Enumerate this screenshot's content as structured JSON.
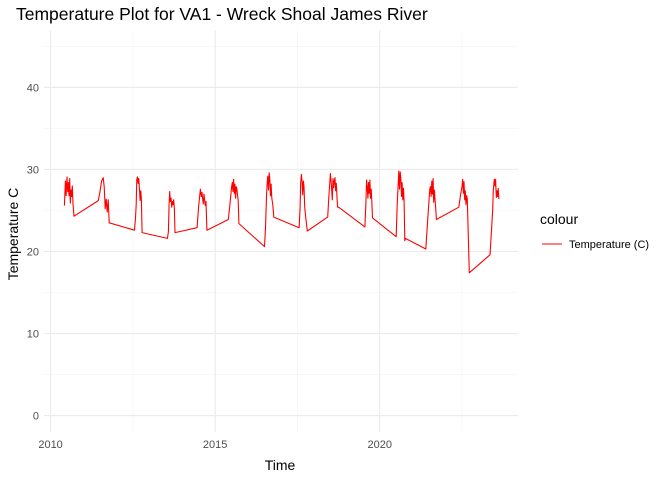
{
  "chart_data": {
    "type": "line",
    "title": "Temperature Plot for VA1 - Wreck Shoal James River",
    "xlabel": "Time",
    "ylabel": "Temperature C",
    "x_ticks": [
      2010,
      2015,
      2020
    ],
    "y_ticks": [
      0,
      10,
      20,
      30,
      40
    ],
    "xlim": [
      2009.8,
      2024.2
    ],
    "ylim": [
      -2,
      47
    ],
    "grid": true,
    "legend": {
      "title": "colour",
      "position": "right",
      "entries": [
        "Temperature (C)"
      ]
    },
    "series": [
      {
        "name": "Temperature (C)",
        "color": "#ff0000",
        "x": [
          2010.42,
          2010.45,
          2010.47,
          2010.5,
          2010.52,
          2010.54,
          2010.56,
          2010.58,
          2010.6,
          2010.62,
          2010.64,
          2010.66,
          2010.68,
          2010.71,
          2011.45,
          2011.5,
          2011.55,
          2011.6,
          2011.63,
          2011.66,
          2011.69,
          2011.72,
          2011.75,
          2011.78,
          2012.55,
          2012.58,
          2012.6,
          2012.62,
          2012.64,
          2012.66,
          2012.68,
          2012.7,
          2012.72,
          2012.74,
          2012.76,
          2012.78,
          2013.55,
          2013.58,
          2013.6,
          2013.62,
          2013.64,
          2013.66,
          2013.68,
          2013.7,
          2013.72,
          2013.74,
          2013.76,
          2013.78,
          2014.45,
          2014.5,
          2014.55,
          2014.58,
          2014.6,
          2014.62,
          2014.64,
          2014.66,
          2014.68,
          2014.7,
          2014.72,
          2014.75,
          2015.4,
          2015.45,
          2015.5,
          2015.52,
          2015.54,
          2015.56,
          2015.58,
          2015.6,
          2015.62,
          2015.64,
          2015.66,
          2015.68,
          2015.7,
          2015.72,
          2016.5,
          2016.53,
          2016.56,
          2016.58,
          2016.6,
          2016.62,
          2016.64,
          2016.66,
          2016.68,
          2016.7,
          2016.72,
          2016.75,
          2016.78,
          2017.55,
          2017.58,
          2017.6,
          2017.62,
          2017.64,
          2017.66,
          2017.68,
          2017.7,
          2017.72,
          2017.75,
          2017.8,
          2018.42,
          2018.45,
          2018.5,
          2018.53,
          2018.56,
          2018.58,
          2018.6,
          2018.62,
          2018.64,
          2018.66,
          2018.68,
          2018.7,
          2018.72,
          2018.75,
          2019.55,
          2019.58,
          2019.6,
          2019.62,
          2019.64,
          2019.66,
          2019.68,
          2019.7,
          2019.72,
          2019.74,
          2019.76,
          2019.78,
          2020.5,
          2020.53,
          2020.56,
          2020.58,
          2020.6,
          2020.62,
          2020.64,
          2020.66,
          2020.68,
          2020.7,
          2020.72,
          2020.74,
          2020.76,
          2020.78,
          2021.4,
          2021.45,
          2021.5,
          2021.52,
          2021.54,
          2021.56,
          2021.58,
          2021.6,
          2021.62,
          2021.64,
          2021.66,
          2021.68,
          2021.7,
          2021.72,
          2022.4,
          2022.45,
          2022.5,
          2022.52,
          2022.54,
          2022.56,
          2022.58,
          2022.6,
          2022.62,
          2022.64,
          2022.66,
          2022.68,
          2022.72,
          2023.35,
          2023.4,
          2023.43,
          2023.45,
          2023.48,
          2023.5,
          2023.52,
          2023.54,
          2023.56,
          2023.58,
          2023.6,
          2023.62
        ],
        "y": [
          25.6,
          28.6,
          26.8,
          29.1,
          27.3,
          28.4,
          26.8,
          28.9,
          25.9,
          27.5,
          26.7,
          28.0,
          25.8,
          24.3,
          26.2,
          27.3,
          28.6,
          29.0,
          27.9,
          25.2,
          26.4,
          24.8,
          26.3,
          23.5,
          22.6,
          24.1,
          25.7,
          28.8,
          29.1,
          28.3,
          28.9,
          27.5,
          26.2,
          27.4,
          26.3,
          22.3,
          21.6,
          22.4,
          25.8,
          27.3,
          26.1,
          26.5,
          25.4,
          26.1,
          25.7,
          26.3,
          25.2,
          22.3,
          22.9,
          25.6,
          27.6,
          26.7,
          27.2,
          26.4,
          25.8,
          27.0,
          26.3,
          25.6,
          26.1,
          22.6,
          23.9,
          25.8,
          27.9,
          28.4,
          27.3,
          28.8,
          27.1,
          28.2,
          26.5,
          27.9,
          27.6,
          26.8,
          26.2,
          23.4,
          20.6,
          22.9,
          26.7,
          28.4,
          29.2,
          27.5,
          29.6,
          28.8,
          26.8,
          28.2,
          26.5,
          25.7,
          24.2,
          22.9,
          25.4,
          28.4,
          29.4,
          28.5,
          26.9,
          28.6,
          27.9,
          25.4,
          24.2,
          22.5,
          24.2,
          26.4,
          29.5,
          28.1,
          26.3,
          28.9,
          27.8,
          28.6,
          29.0,
          27.4,
          28.3,
          26.6,
          25.4,
          25.4,
          23.0,
          25.9,
          28.7,
          28.0,
          26.5,
          28.4,
          27.1,
          28.7,
          26.5,
          27.6,
          26.2,
          24.1,
          21.8,
          25.8,
          28.2,
          29.8,
          27.6,
          29.7,
          29.0,
          26.7,
          28.4,
          26.3,
          27.7,
          26.1,
          21.3,
          21.6,
          20.3,
          23.5,
          26.4,
          27.6,
          27.9,
          26.7,
          28.6,
          27.0,
          28.9,
          26.0,
          27.5,
          26.2,
          25.3,
          23.9,
          25.4,
          26.8,
          27.9,
          28.8,
          27.1,
          28.5,
          26.3,
          27.4,
          25.7,
          26.8,
          26.4,
          23.2,
          17.4,
          19.6,
          23.0,
          25.1,
          27.5,
          28.8,
          28.0,
          28.8,
          26.6,
          27.4,
          26.7,
          27.7,
          26.4
        ]
      }
    ]
  }
}
